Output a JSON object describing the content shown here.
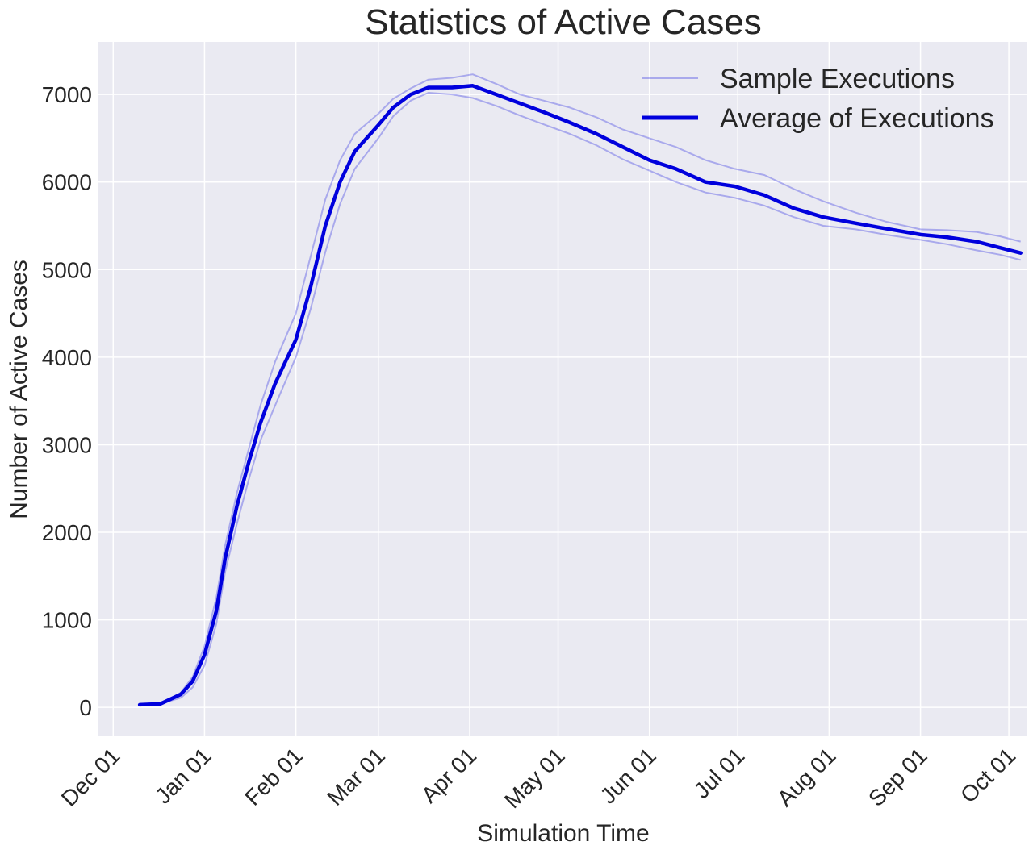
{
  "chart_data": {
    "type": "line",
    "title": "Statistics of Active Cases",
    "xlabel": "Simulation Time",
    "ylabel": "Number of Active Cases",
    "x_ticks": [
      "Dec 01",
      "Jan 01",
      "Feb 01",
      "Mar 01",
      "Apr 01",
      "May 01",
      "Jun 01",
      "Jul 01",
      "Aug 01",
      "Sep 01",
      "Oct 01"
    ],
    "y_ticks": [
      "0",
      "1000",
      "2000",
      "3000",
      "4000",
      "5000",
      "6000",
      "7000"
    ],
    "xlim": [
      "2020-11-26",
      "2021-10-07"
    ],
    "ylim": [
      -330,
      7600
    ],
    "grid": true,
    "legend_position": "top-right",
    "legend": [
      {
        "label": "Sample Executions",
        "style": "thin-translucent"
      },
      {
        "label": "Average of Executions",
        "style": "thick"
      }
    ],
    "colors": {
      "line": "#0000dd",
      "background": "#eaeaf2",
      "grid": "#ffffff"
    },
    "x": [
      "2020-12-10",
      "2020-12-17",
      "2020-12-24",
      "2020-12-28",
      "2021-01-01",
      "2021-01-05",
      "2021-01-08",
      "2021-01-12",
      "2021-01-16",
      "2021-01-20",
      "2021-01-25",
      "2021-02-01",
      "2021-02-06",
      "2021-02-11",
      "2021-02-16",
      "2021-02-21",
      "2021-03-01",
      "2021-03-06",
      "2021-03-12",
      "2021-03-18",
      "2021-03-26",
      "2021-04-02",
      "2021-04-10",
      "2021-04-18",
      "2021-04-26",
      "2021-05-05",
      "2021-05-14",
      "2021-05-23",
      "2021-06-01",
      "2021-06-10",
      "2021-06-20",
      "2021-06-30",
      "2021-07-10",
      "2021-07-20",
      "2021-07-30",
      "2021-08-10",
      "2021-08-20",
      "2021-09-01",
      "2021-09-10",
      "2021-09-20",
      "2021-09-28",
      "2021-10-05"
    ],
    "series": [
      {
        "name": "Average of Executions",
        "values": [
          30,
          40,
          150,
          300,
          600,
          1100,
          1700,
          2300,
          2800,
          3250,
          3700,
          4200,
          4800,
          5500,
          6000,
          6350,
          6650,
          6850,
          7000,
          7080,
          7080,
          7100,
          7000,
          6900,
          6800,
          6680,
          6550,
          6400,
          6250,
          6150,
          6000,
          5950,
          5850,
          5700,
          5600,
          5530,
          5470,
          5400,
          5370,
          5320,
          5250,
          5190
        ]
      },
      {
        "values": [
          30,
          40,
          170,
          350,
          700,
          1250,
          1850,
          2450,
          2950,
          3450,
          3950,
          4500,
          5150,
          5800,
          6250,
          6550,
          6780,
          6950,
          7070,
          7170,
          7190,
          7230,
          7120,
          7000,
          6930,
          6850,
          6740,
          6600,
          6500,
          6400,
          6250,
          6150,
          6080,
          5920,
          5780,
          5650,
          5550,
          5460,
          5450,
          5430,
          5380,
          5320
        ]
      },
      {
        "values": [
          30,
          40,
          110,
          230,
          480,
          950,
          1550,
          2100,
          2600,
          3050,
          3450,
          4000,
          4550,
          5200,
          5750,
          6150,
          6500,
          6750,
          6930,
          7020,
          7000,
          6960,
          6870,
          6760,
          6660,
          6550,
          6420,
          6260,
          6130,
          6000,
          5880,
          5820,
          5730,
          5600,
          5500,
          5460,
          5400,
          5340,
          5290,
          5220,
          5170,
          5110
        ]
      }
    ]
  }
}
